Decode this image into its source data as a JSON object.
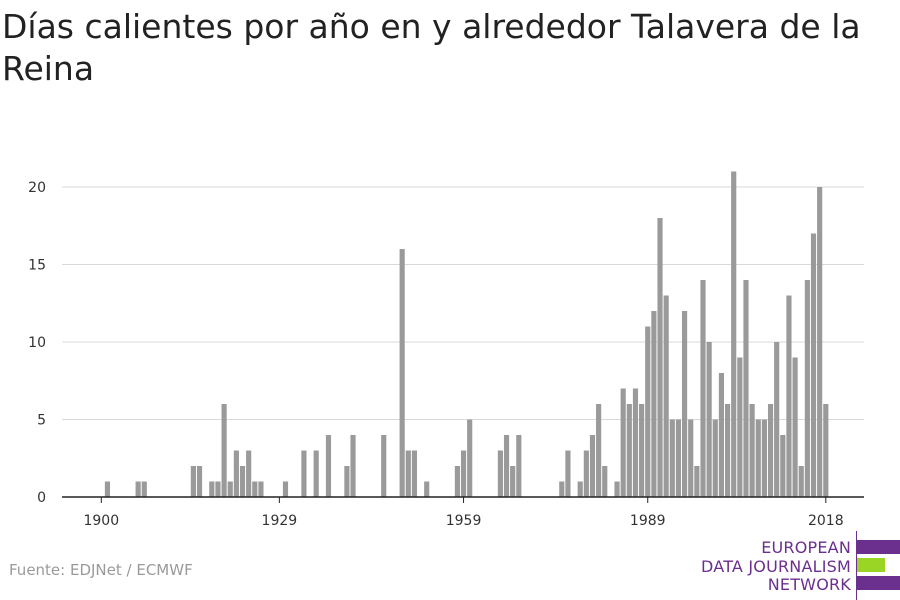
{
  "chart_data": {
    "type": "bar",
    "title": "Días calientes por año en y alrededor Talavera de la Reina",
    "xlabel": "",
    "ylabel": "",
    "x": [
      1900,
      1901,
      1902,
      1903,
      1904,
      1905,
      1906,
      1907,
      1908,
      1909,
      1910,
      1911,
      1912,
      1913,
      1914,
      1915,
      1916,
      1917,
      1918,
      1919,
      1920,
      1921,
      1922,
      1923,
      1924,
      1925,
      1926,
      1927,
      1928,
      1929,
      1930,
      1931,
      1932,
      1933,
      1934,
      1935,
      1936,
      1937,
      1938,
      1939,
      1940,
      1941,
      1942,
      1943,
      1944,
      1945,
      1946,
      1947,
      1948,
      1949,
      1950,
      1951,
      1952,
      1953,
      1954,
      1955,
      1956,
      1957,
      1958,
      1959,
      1960,
      1961,
      1962,
      1963,
      1964,
      1965,
      1966,
      1967,
      1968,
      1969,
      1970,
      1971,
      1972,
      1973,
      1974,
      1975,
      1976,
      1977,
      1978,
      1979,
      1980,
      1981,
      1982,
      1983,
      1984,
      1985,
      1986,
      1987,
      1988,
      1989,
      1990,
      1991,
      1992,
      1993,
      1994,
      1995,
      1996,
      1997,
      1998,
      1999,
      2000,
      2001,
      2002,
      2003,
      2004,
      2005,
      2006,
      2007,
      2008,
      2009,
      2010,
      2011,
      2012,
      2013,
      2014,
      2015,
      2016,
      2017,
      2018
    ],
    "values": [
      0,
      1,
      0,
      0,
      0,
      0,
      1,
      1,
      0,
      0,
      0,
      0,
      0,
      0,
      0,
      2,
      2,
      0,
      1,
      1,
      6,
      1,
      3,
      2,
      3,
      1,
      1,
      0,
      0,
      0,
      1,
      0,
      0,
      3,
      0,
      3,
      0,
      4,
      0,
      0,
      2,
      4,
      0,
      0,
      0,
      0,
      4,
      0,
      0,
      16,
      3,
      3,
      0,
      1,
      0,
      0,
      0,
      0,
      2,
      3,
      5,
      0,
      0,
      0,
      0,
      3,
      4,
      2,
      4,
      0,
      0,
      0,
      0,
      0,
      0,
      1,
      3,
      0,
      1,
      3,
      4,
      6,
      2,
      0,
      1,
      7,
      6,
      7,
      6,
      11,
      12,
      18,
      13,
      5,
      5,
      12,
      5,
      2,
      14,
      10,
      5,
      8,
      6,
      21,
      9,
      14,
      6,
      5,
      5,
      6,
      10,
      4,
      13,
      9,
      2,
      14,
      17,
      20,
      6
    ],
    "x_ticks": [
      "1900",
      "1929",
      "1959",
      "1989",
      "2018"
    ],
    "y_ticks": [
      "0",
      "5",
      "10",
      "15",
      "20"
    ],
    "ylim": [
      0,
      21
    ],
    "grid": "horizontal",
    "bar_color": "#9a9a9a"
  },
  "footer": {
    "source": "Fuente: EDJNet / ECMWF"
  },
  "logo": {
    "line1": "EUROPEAN",
    "line2": "DATA JOURNALISM",
    "line3": "NETWORK",
    "purple": "#6b2f8e",
    "green": "#9ad424"
  }
}
